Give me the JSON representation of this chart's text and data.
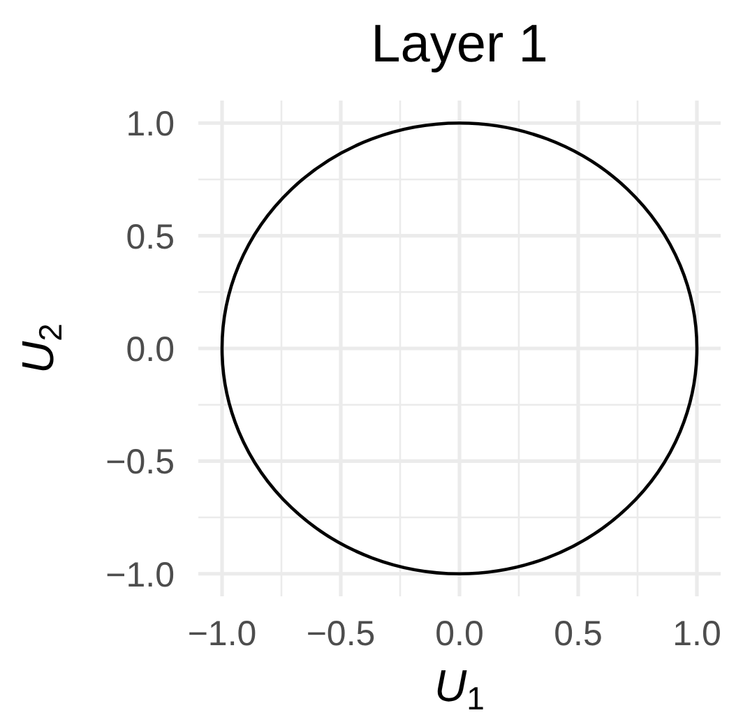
{
  "chart_data": {
    "type": "line",
    "title": "Layer 1",
    "xlabel": "U$_{1}$",
    "ylabel": "U$_{2}$",
    "xlim": [
      -1.1,
      1.1
    ],
    "ylim": [
      -1.1,
      1.1
    ],
    "xticks": [
      {
        "value": -1,
        "label": "−1.0"
      },
      {
        "value": -0.75,
        "label": null
      },
      {
        "value": -0.5,
        "label": "−0.5"
      },
      {
        "value": -0.25,
        "label": null
      },
      {
        "value": 0,
        "label": "0.0"
      },
      {
        "value": 0.25,
        "label": null
      },
      {
        "value": 0.5,
        "label": "0.5"
      },
      {
        "value": 0.75,
        "label": null
      },
      {
        "value": 1,
        "label": "1.0"
      }
    ],
    "yticks": [
      {
        "value": -1,
        "label": "−1.0"
      },
      {
        "value": -0.75,
        "label": null
      },
      {
        "value": -0.5,
        "label": "−0.5"
      },
      {
        "value": -0.25,
        "label": null
      },
      {
        "value": 0,
        "label": "0.0"
      },
      {
        "value": 0.25,
        "label": null
      },
      {
        "value": 0.5,
        "label": "0.5"
      },
      {
        "value": 0.75,
        "label": null
      },
      {
        "value": 1,
        "label": "1.0"
      }
    ],
    "grid": true
  }
}
